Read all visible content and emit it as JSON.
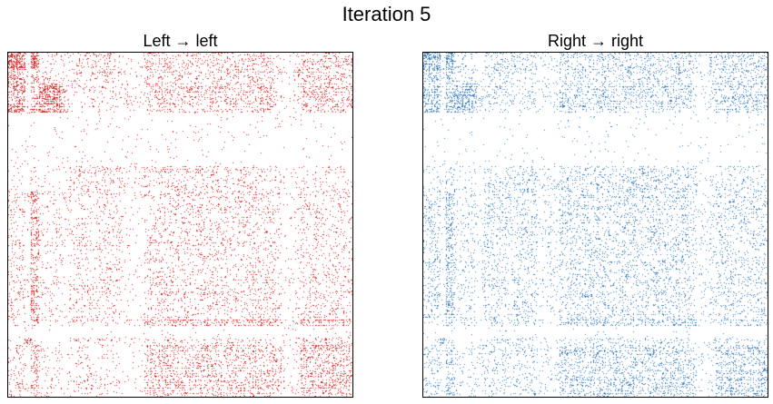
{
  "figure": {
    "title": "Iteration 5"
  },
  "chart_data": [
    {
      "type": "heatmap",
      "title": "Left → left",
      "color": "#d62728",
      "matrix_size": 1000,
      "axes_ticks": false,
      "block_boundaries": [
        0,
        50,
        65,
        90,
        155,
        175,
        330,
        395,
        775,
        795,
        830,
        850,
        1000
      ],
      "block_density": [
        [
          0.55,
          0.05,
          0.5,
          0.06,
          0.02,
          0.08,
          0.03,
          0.1,
          0.04,
          0.02,
          0.06,
          0.14
        ],
        [
          0.2,
          0.1,
          0.2,
          0.08,
          0.04,
          0.1,
          0.05,
          0.14,
          0.06,
          0.05,
          0.18,
          0.1
        ],
        [
          0.25,
          0.06,
          0.3,
          0.06,
          0.04,
          0.07,
          0.04,
          0.1,
          0.04,
          0.02,
          0.05,
          0.12
        ],
        [
          0.3,
          0.05,
          0.2,
          0.45,
          0.12,
          0.06,
          0.04,
          0.16,
          0.05,
          0.03,
          0.06,
          0.16
        ],
        [
          0.5,
          0.04,
          0.3,
          0.5,
          0.15,
          0.05,
          0.03,
          0.12,
          0.05,
          0.02,
          0.05,
          0.14
        ],
        [
          0.01,
          0.01,
          0.01,
          0.01,
          0.01,
          0.01,
          0.01,
          0.01,
          0.01,
          0.01,
          0.01,
          0.01
        ],
        [
          0.03,
          0.02,
          0.05,
          0.03,
          0.02,
          0.08,
          0.05,
          0.1,
          0.07,
          0.02,
          0.05,
          0.05
        ],
        [
          0.08,
          0.03,
          0.25,
          0.05,
          0.03,
          0.06,
          0.02,
          0.08,
          0.06,
          0.02,
          0.04,
          0.07
        ],
        [
          0.05,
          0.02,
          0.22,
          0.04,
          0.03,
          0.08,
          0.03,
          0.2,
          0.22,
          0.02,
          0.04,
          0.18
        ],
        [
          0.01,
          0.01,
          0.01,
          0.01,
          0.01,
          0.01,
          0.01,
          0.01,
          0.01,
          0.01,
          0.01,
          0.01
        ],
        [
          0.02,
          0.55,
          0.03,
          0.01,
          0.01,
          0.08,
          0.02,
          0.08,
          0.04,
          0.02,
          0.06,
          0.1
        ],
        [
          0.08,
          0.03,
          0.18,
          0.05,
          0.03,
          0.06,
          0.02,
          0.15,
          0.12,
          0.02,
          0.04,
          0.18
        ]
      ]
    },
    {
      "type": "heatmap",
      "title": "Right → right",
      "color": "#3a7dbb",
      "matrix_size": 1000,
      "axes_ticks": false,
      "block_boundaries": [
        0,
        50,
        65,
        90,
        155,
        175,
        330,
        395,
        775,
        795,
        830,
        850,
        1000
      ],
      "block_density": [
        [
          0.45,
          0.05,
          0.45,
          0.06,
          0.03,
          0.1,
          0.04,
          0.12,
          0.06,
          0.03,
          0.08,
          0.15
        ],
        [
          0.18,
          0.1,
          0.18,
          0.08,
          0.04,
          0.1,
          0.06,
          0.14,
          0.08,
          0.05,
          0.15,
          0.12
        ],
        [
          0.22,
          0.06,
          0.28,
          0.06,
          0.04,
          0.08,
          0.05,
          0.11,
          0.06,
          0.03,
          0.06,
          0.13
        ],
        [
          0.25,
          0.05,
          0.2,
          0.35,
          0.12,
          0.08,
          0.05,
          0.15,
          0.07,
          0.03,
          0.07,
          0.16
        ],
        [
          0.4,
          0.04,
          0.3,
          0.4,
          0.14,
          0.06,
          0.04,
          0.12,
          0.07,
          0.03,
          0.06,
          0.14
        ],
        [
          0.01,
          0.01,
          0.01,
          0.01,
          0.01,
          0.01,
          0.01,
          0.01,
          0.01,
          0.01,
          0.01,
          0.01
        ],
        [
          0.04,
          0.02,
          0.06,
          0.03,
          0.02,
          0.1,
          0.06,
          0.12,
          0.09,
          0.03,
          0.06,
          0.07
        ],
        [
          0.1,
          0.03,
          0.22,
          0.06,
          0.03,
          0.08,
          0.04,
          0.1,
          0.08,
          0.03,
          0.05,
          0.09
        ],
        [
          0.07,
          0.03,
          0.2,
          0.05,
          0.03,
          0.1,
          0.04,
          0.18,
          0.18,
          0.03,
          0.05,
          0.16
        ],
        [
          0.01,
          0.01,
          0.01,
          0.01,
          0.01,
          0.01,
          0.01,
          0.01,
          0.01,
          0.01,
          0.01,
          0.01
        ],
        [
          0.02,
          0.45,
          0.04,
          0.02,
          0.02,
          0.1,
          0.03,
          0.1,
          0.05,
          0.02,
          0.08,
          0.1
        ],
        [
          0.1,
          0.04,
          0.18,
          0.06,
          0.04,
          0.08,
          0.04,
          0.15,
          0.12,
          0.03,
          0.05,
          0.18
        ]
      ]
    }
  ]
}
